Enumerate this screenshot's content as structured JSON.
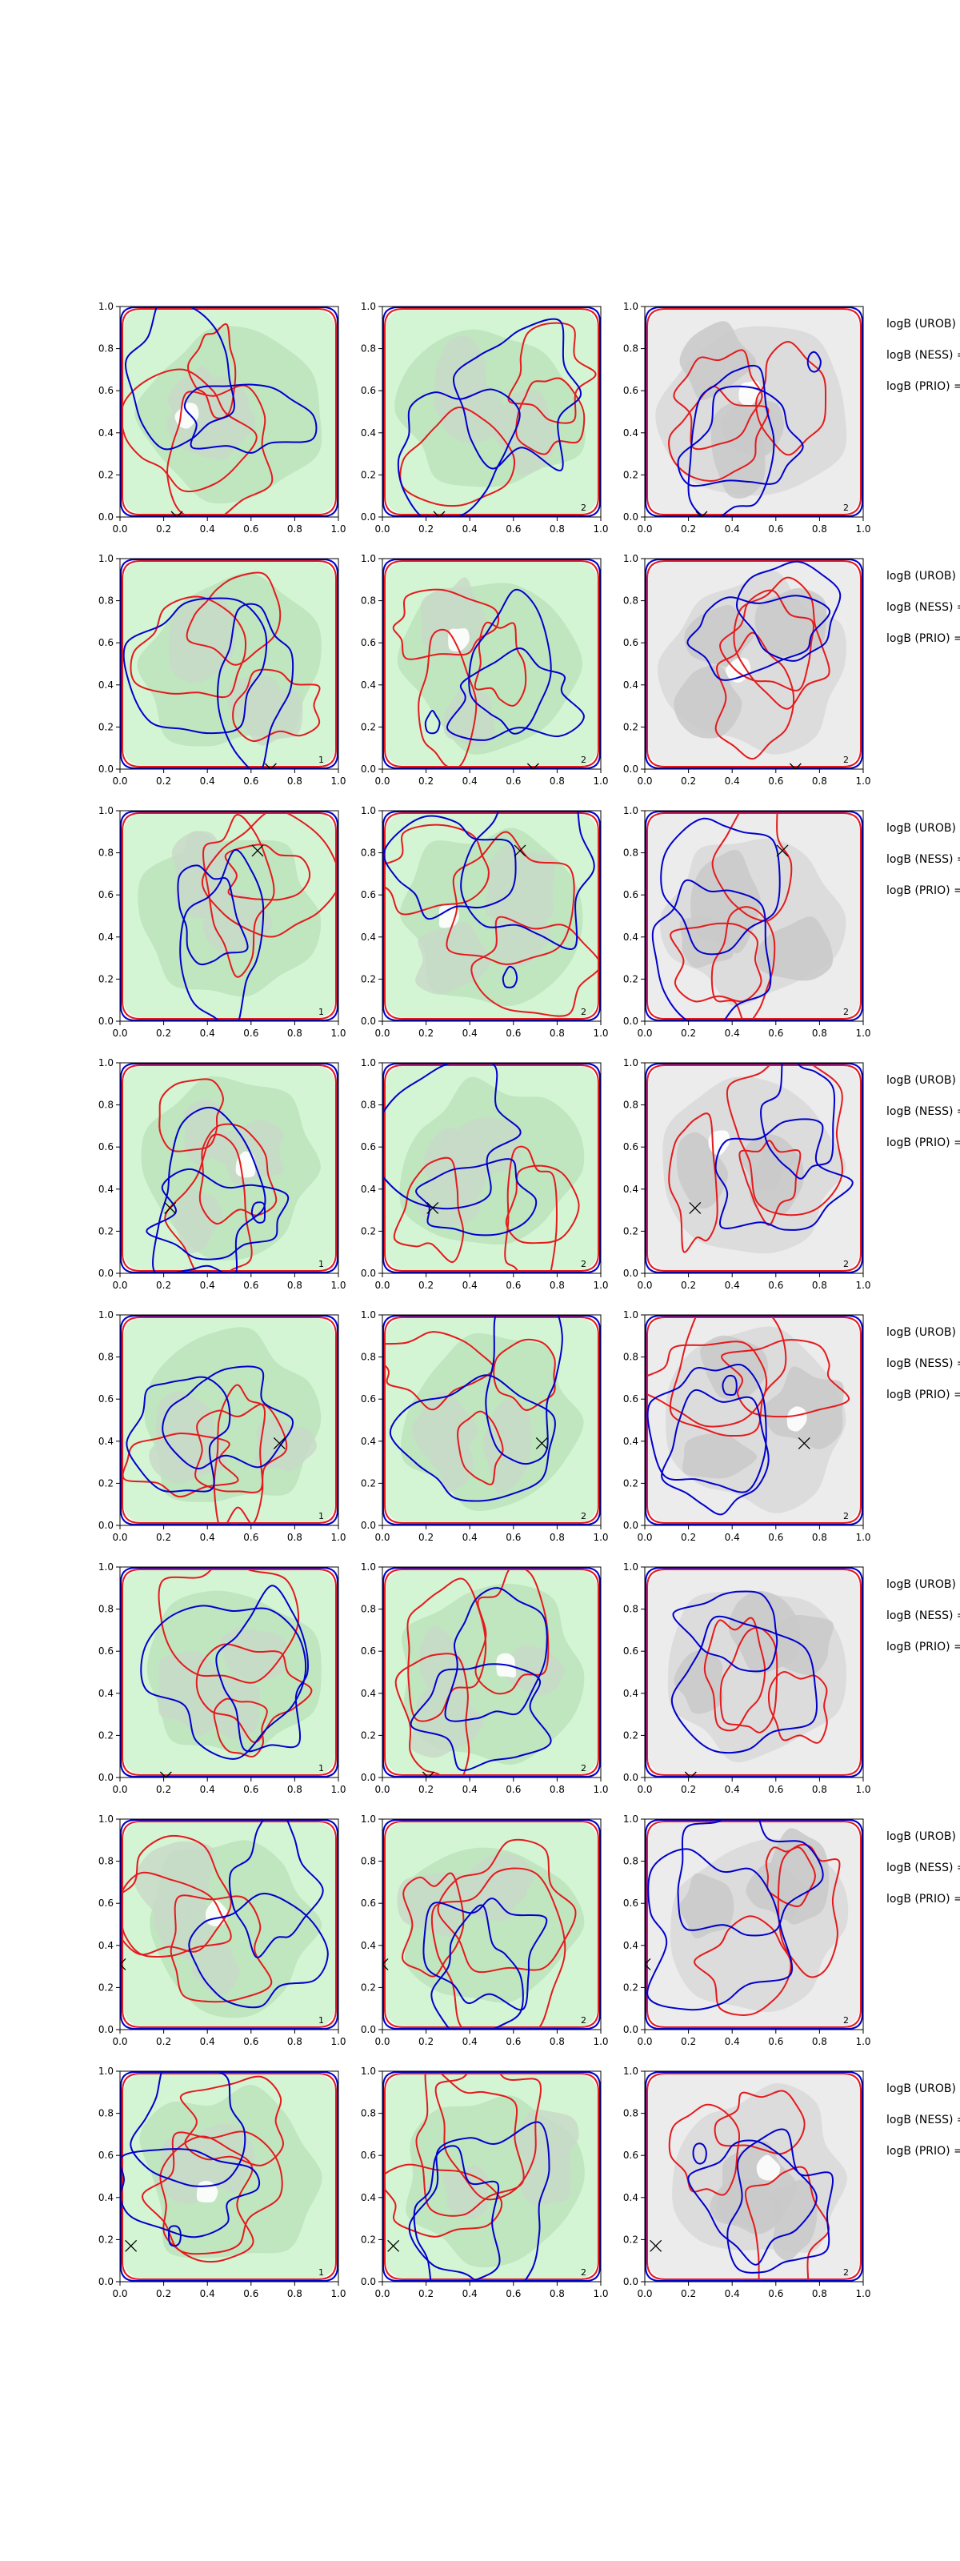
{
  "colors": {
    "green_light": "#d4f5d4",
    "green_mid": "#bfe6bf",
    "green_dark": "#c8d9c8",
    "gray_light": "#ececec",
    "gray_mid": "#dcdcdc",
    "gray_dark": "#c9c9c9",
    "contour_red": "#e41a1c",
    "contour_blue": "#0000cc"
  },
  "chart_data": {
    "type": "contour",
    "grid": "8 rows x 3 columns",
    "xlim": [
      0.0,
      1.0
    ],
    "ylim": [
      0.0,
      1.0
    ],
    "xticks": [
      "0.0",
      "0.2",
      "0.4",
      "0.6",
      "0.8",
      "1.0"
    ],
    "yticks": [
      "0.0",
      "0.2",
      "0.4",
      "0.6",
      "0.8",
      "1.0"
    ],
    "column_fill": [
      "green",
      "green",
      "gray"
    ],
    "rows": [
      {
        "marker": [
          0.26,
          0.0
        ],
        "labels": [
          "",
          "2",
          "2"
        ],
        "side_labels": [
          "logB (UROB) =",
          "logB (NESS) =",
          "logB (PRIO) ="
        ]
      },
      {
        "marker": [
          0.69,
          0.0
        ],
        "labels": [
          "1",
          "2",
          "2"
        ],
        "side_labels": [
          "logB (UROB) =",
          "logB (NESS) =",
          "logB (PRIO) ="
        ]
      },
      {
        "marker": [
          0.63,
          0.81
        ],
        "labels": [
          "1",
          "2",
          "2"
        ],
        "side_labels": [
          "logB (UROB) =",
          "logB (NESS) =",
          "logB (PRIO) ="
        ]
      },
      {
        "marker": [
          0.23,
          0.31
        ],
        "labels": [
          "1",
          "2",
          "2"
        ],
        "side_labels": [
          "logB (UROB) =",
          "logB (NESS) =",
          "logB (PRIO) ="
        ]
      },
      {
        "marker": [
          0.73,
          0.39
        ],
        "labels": [
          "1",
          "2",
          "2"
        ],
        "side_labels": [
          "logB (UROB) =",
          "logB (NESS) =",
          "logB (PRIO) ="
        ]
      },
      {
        "marker": [
          0.21,
          0.0
        ],
        "labels": [
          "1",
          "2",
          ""
        ],
        "side_labels": [
          "logB (UROB) =",
          "logB (NESS) =",
          "logB (PRIO) ="
        ]
      },
      {
        "marker": [
          0.0,
          0.31
        ],
        "labels": [
          "1",
          "2",
          "2"
        ],
        "side_labels": [
          "logB (UROB) =",
          "logB (NESS) =",
          "logB (PRIO) ="
        ]
      },
      {
        "marker": [
          0.05,
          0.17
        ],
        "labels": [
          "1",
          "2",
          "2"
        ],
        "side_labels": [
          "logB (UROB) =",
          "logB (NESS) =",
          "logB (PRIO) ="
        ]
      }
    ]
  }
}
